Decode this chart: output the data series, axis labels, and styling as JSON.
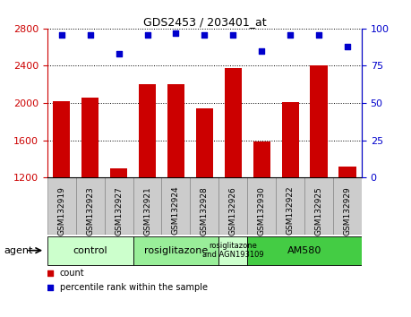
{
  "title": "GDS2453 / 203401_at",
  "samples": [
    "GSM132919",
    "GSM132923",
    "GSM132927",
    "GSM132921",
    "GSM132924",
    "GSM132928",
    "GSM132926",
    "GSM132930",
    "GSM132922",
    "GSM132925",
    "GSM132929"
  ],
  "counts": [
    2020,
    2060,
    1300,
    2200,
    2200,
    1940,
    2380,
    1590,
    2010,
    2400,
    1320
  ],
  "percentiles": [
    96,
    96,
    83,
    96,
    97,
    96,
    96,
    85,
    96,
    96,
    88
  ],
  "ylim_left": [
    1200,
    2800
  ],
  "ylim_right": [
    0,
    100
  ],
  "yticks_left": [
    1200,
    1600,
    2000,
    2400,
    2800
  ],
  "yticks_right": [
    0,
    25,
    50,
    75,
    100
  ],
  "left_tick_color": "#cc0000",
  "right_tick_color": "#0000cc",
  "bar_color": "#cc0000",
  "dot_color": "#0000cc",
  "grid_color": "#000000",
  "agent_groups": [
    {
      "label": "control",
      "start": 0,
      "end": 3,
      "color": "#ccffcc"
    },
    {
      "label": "rosiglitazone",
      "start": 3,
      "end": 6,
      "color": "#99ee99"
    },
    {
      "label": "rosiglitazone\nand AGN193109",
      "start": 6,
      "end": 7,
      "color": "#ccffcc"
    },
    {
      "label": "AM580",
      "start": 7,
      "end": 11,
      "color": "#44cc44"
    }
  ],
  "xlabel_agent": "agent",
  "legend_count": "count",
  "legend_percentile": "percentile rank within the sample",
  "bg_color": "#ffffff",
  "plot_bg": "#ffffff",
  "xtick_bg": "#cccccc"
}
